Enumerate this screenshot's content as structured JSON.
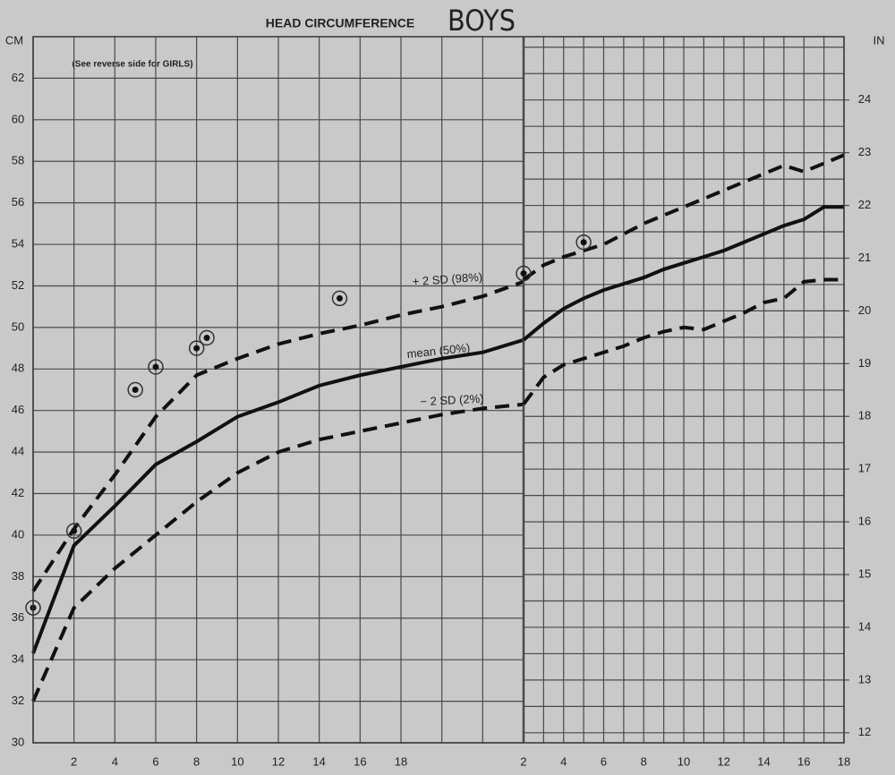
{
  "chart_data": [
    {
      "type": "line",
      "title": "HEAD CIRCUMFERENCE",
      "subtitle": "BOYS",
      "note": "(See reverse side for GIRLS)",
      "ylabel": "CM",
      "x": [
        0,
        2,
        4,
        6,
        8,
        10,
        12,
        14,
        16,
        18,
        20,
        22,
        24
      ],
      "xlim": [
        0,
        24
      ],
      "xticks": [
        2,
        4,
        6,
        8,
        10,
        12,
        14,
        16,
        18
      ],
      "xgrid": [
        0,
        2,
        4,
        6,
        8,
        10,
        12,
        14,
        16,
        18,
        20,
        22,
        24
      ],
      "ylim": [
        30,
        64
      ],
      "yticks": [
        30,
        32,
        34,
        36,
        38,
        40,
        42,
        44,
        46,
        48,
        50,
        52,
        54,
        56,
        58,
        60,
        62
      ],
      "series": [
        {
          "name": "+ 2 SD (98%)",
          "color": "#111111",
          "dashed": true,
          "values": [
            37.3,
            40.3,
            42.9,
            45.7,
            47.7,
            48.5,
            49.2,
            49.7,
            50.1,
            50.6,
            51.0,
            51.5,
            52.2
          ]
        },
        {
          "name": "mean (50%)",
          "color": "#111111",
          "dashed": false,
          "values": [
            34.3,
            39.5,
            41.4,
            43.4,
            44.5,
            45.7,
            46.4,
            47.2,
            47.7,
            48.1,
            48.5,
            48.8,
            49.4
          ]
        },
        {
          "name": "− 2 SD (2%)",
          "color": "#111111",
          "dashed": true,
          "values": [
            32.0,
            36.5,
            38.4,
            40.0,
            41.6,
            43.0,
            44.0,
            44.6,
            45.0,
            45.4,
            45.8,
            46.1,
            46.3
          ]
        },
        {
          "marker": "circle",
          "color": "#111111",
          "x": [
            0,
            2,
            5,
            6,
            8,
            8.5,
            15
          ],
          "values": [
            36.5,
            40.2,
            47.0,
            48.1,
            49.0,
            49.5,
            51.4
          ]
        }
      ]
    },
    {
      "type": "line",
      "y2label": "IN",
      "x": [
        2,
        3,
        4,
        5,
        6,
        7,
        8,
        9,
        10,
        11,
        12,
        13,
        14,
        15,
        16,
        17,
        18
      ],
      "xlim": [
        2,
        18
      ],
      "xticks": [
        2,
        4,
        6,
        8,
        10,
        12,
        14,
        16,
        18
      ],
      "xgrid": [
        2,
        3,
        4,
        5,
        6,
        7,
        8,
        9,
        10,
        11,
        12,
        13,
        14,
        15,
        16,
        17,
        18
      ],
      "ylim": [
        30,
        64
      ],
      "y2lim": [
        11.81,
        25.2
      ],
      "y2ticks": [
        12,
        13,
        14,
        15,
        16,
        17,
        18,
        19,
        20,
        21,
        22,
        23,
        24
      ],
      "y2grid": [
        12,
        12.5,
        13,
        13.5,
        14,
        14.5,
        15,
        15.5,
        16,
        16.5,
        17,
        17.5,
        18,
        18.5,
        19,
        19.5,
        20,
        20.5,
        21,
        21.5,
        22,
        22.5,
        23,
        23.5,
        24,
        24.5,
        25
      ],
      "series": [
        {
          "color": "#111111",
          "dashed": true,
          "values": [
            52.3,
            53.0,
            53.4,
            53.7,
            54.0,
            54.5,
            55.0,
            55.4,
            55.8,
            56.2,
            56.6,
            57.0,
            57.4,
            57.8,
            57.5,
            57.9,
            58.3
          ]
        },
        {
          "color": "#111111",
          "dashed": false,
          "values": [
            49.4,
            50.2,
            50.9,
            51.4,
            51.8,
            52.1,
            52.4,
            52.8,
            53.1,
            53.4,
            53.7,
            54.1,
            54.5,
            54.9,
            55.2,
            55.8,
            55.8
          ]
        },
        {
          "color": "#111111",
          "dashed": true,
          "values": [
            46.3,
            47.6,
            48.2,
            48.5,
            48.8,
            49.1,
            49.5,
            49.8,
            50.0,
            49.9,
            50.3,
            50.7,
            51.2,
            51.4,
            52.2,
            52.3,
            52.3
          ]
        },
        {
          "marker": "circle",
          "color": "#111111",
          "x": [
            2,
            5
          ],
          "values": [
            52.6,
            54.1
          ]
        }
      ]
    }
  ]
}
